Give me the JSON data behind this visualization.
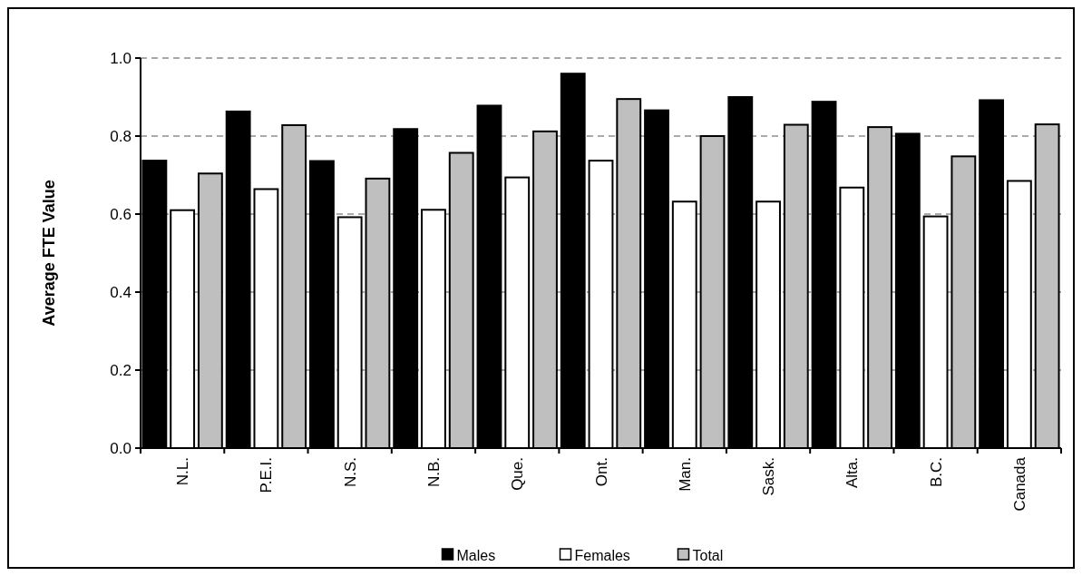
{
  "chart_data": {
    "type": "bar",
    "ylabel": "Average FTE Value",
    "categories": [
      "N.L.",
      "P.E.I.",
      "N.S.",
      "N.B.",
      "Que.",
      "Ont.",
      "Man.",
      "Sask.",
      "Alta.",
      "B.C.",
      "Canada"
    ],
    "series": [
      {
        "name": "Males",
        "color": "#000000",
        "values": [
          0.737,
          0.863,
          0.736,
          0.818,
          0.878,
          0.96,
          0.866,
          0.9,
          0.888,
          0.806,
          0.892
        ]
      },
      {
        "name": "Females",
        "color": "#ffffff",
        "values": [
          0.61,
          0.664,
          0.592,
          0.611,
          0.694,
          0.737,
          0.632,
          0.632,
          0.668,
          0.594,
          0.685
        ]
      },
      {
        "name": "Total",
        "color": "#bfbfbf",
        "values": [
          0.704,
          0.828,
          0.691,
          0.757,
          0.812,
          0.895,
          0.8,
          0.829,
          0.823,
          0.748,
          0.83
        ]
      }
    ],
    "ylim": [
      0,
      1
    ],
    "yticks": [
      {
        "value": 0,
        "label": "0.0"
      },
      {
        "value": 0.2,
        "label": "0.2"
      },
      {
        "value": 0.4,
        "label": "0.4"
      },
      {
        "value": 0.6,
        "label": "0.6"
      },
      {
        "value": 0.8,
        "label": "0.8"
      },
      {
        "value": 1,
        "label": "1.0"
      }
    ],
    "grid": "y",
    "legend": "bottom"
  }
}
